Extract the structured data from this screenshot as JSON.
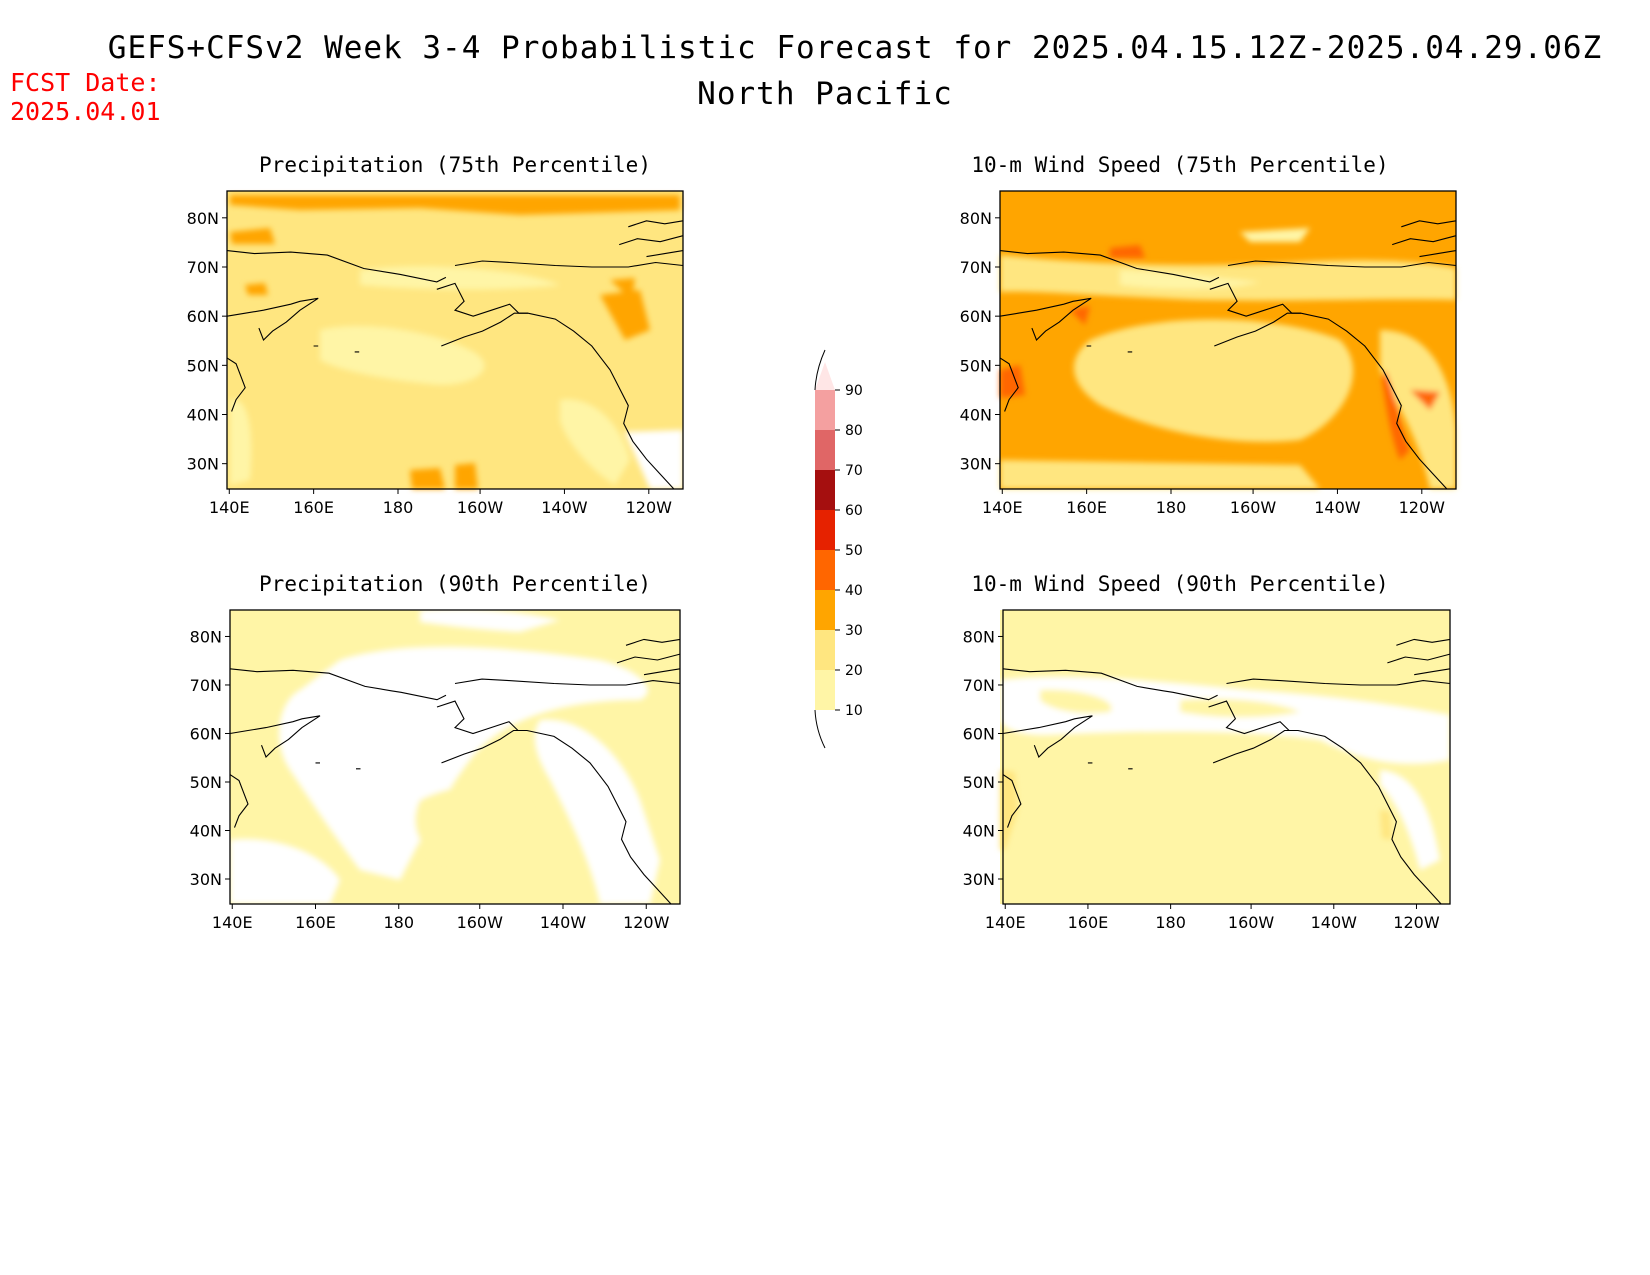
{
  "header": {
    "title_line1": "GEFS+CFSv2 Week 3-4 Probabilistic Forecast for 2025.04.15.12Z-2025.04.29.06Z",
    "title_line2": "North Pacific",
    "fcst_label": "FCST Date:",
    "fcst_date": "2025.04.01"
  },
  "axes": {
    "lon_ticks": [
      "140E",
      "160E",
      "180",
      "160W",
      "140W",
      "120W"
    ],
    "lat_ticks": [
      "80N",
      "70N",
      "60N",
      "50N",
      "40N",
      "30N"
    ]
  },
  "panels": [
    {
      "id": "precip75",
      "title": "Precipitation (75th Percentile)",
      "base_level": "20-30",
      "dominant_colors": [
        "#ffe680",
        "#fff5a6",
        "#ffa500"
      ]
    },
    {
      "id": "wind75",
      "title": "10-m Wind Speed (75th Percentile)",
      "base_level": "30-40",
      "dominant_colors": [
        "#ffa500",
        "#ffe680",
        "#ff6600"
      ]
    },
    {
      "id": "precip90",
      "title": "Precipitation (90th Percentile)",
      "base_level": "10-20",
      "dominant_colors": [
        "#ffffff",
        "#fff5a6"
      ]
    },
    {
      "id": "wind90",
      "title": "10-m Wind Speed (90th Percentile)",
      "base_level": "10-20",
      "dominant_colors": [
        "#fff5a6",
        "#ffffff",
        "#ffe680"
      ]
    }
  ],
  "colorbar": {
    "levels": [
      "10",
      "20",
      "30",
      "40",
      "50",
      "60",
      "70",
      "80",
      "90"
    ],
    "colors": [
      "#fff5a6",
      "#ffe680",
      "#ffa500",
      "#ff6600",
      "#e62200",
      "#a50f0f",
      "#e06666",
      "#f4a0a0",
      "#ffe6e6"
    ]
  }
}
